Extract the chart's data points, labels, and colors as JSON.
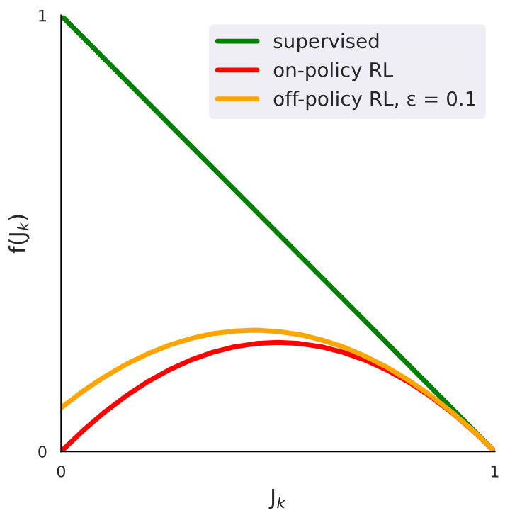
{
  "chart_data": {
    "type": "line",
    "xlabel": "J$_{k}$",
    "ylabel": "f(J$_{k}$)",
    "x": [
      0,
      0.05,
      0.1,
      0.15,
      0.2,
      0.25,
      0.3,
      0.35,
      0.4,
      0.45,
      0.5,
      0.55,
      0.6,
      0.65,
      0.7,
      0.75,
      0.8,
      0.85,
      0.9,
      0.95,
      1
    ],
    "series": [
      {
        "name": "supervised",
        "color": "#008000",
        "x": [
          0,
          1
        ],
        "values": [
          1,
          0
        ]
      },
      {
        "name": "on-policy RL",
        "color": "#ff0000",
        "values": [
          0,
          0.0475,
          0.09,
          0.1275,
          0.16,
          0.1875,
          0.21,
          0.2275,
          0.24,
          0.2475,
          0.25,
          0.2475,
          0.24,
          0.2275,
          0.21,
          0.1875,
          0.16,
          0.1275,
          0.09,
          0.0475,
          0
        ]
      },
      {
        "name": "off-policy RL, ε = 0.1",
        "color": "#ffa500",
        "values": [
          0.1,
          0.138,
          0.171,
          0.2,
          0.224,
          0.244,
          0.259,
          0.27,
          0.276,
          0.278,
          0.275,
          0.268,
          0.256,
          0.24,
          0.219,
          0.194,
          0.164,
          0.13,
          0.091,
          0.048,
          0
        ]
      }
    ],
    "xlim": [
      0,
      1
    ],
    "ylim": [
      0,
      1
    ],
    "xticks": [
      0,
      1
    ],
    "yticks": [
      0,
      1
    ],
    "grid": false,
    "legend": "top right",
    "marker": "none",
    "line_style": "solid"
  }
}
